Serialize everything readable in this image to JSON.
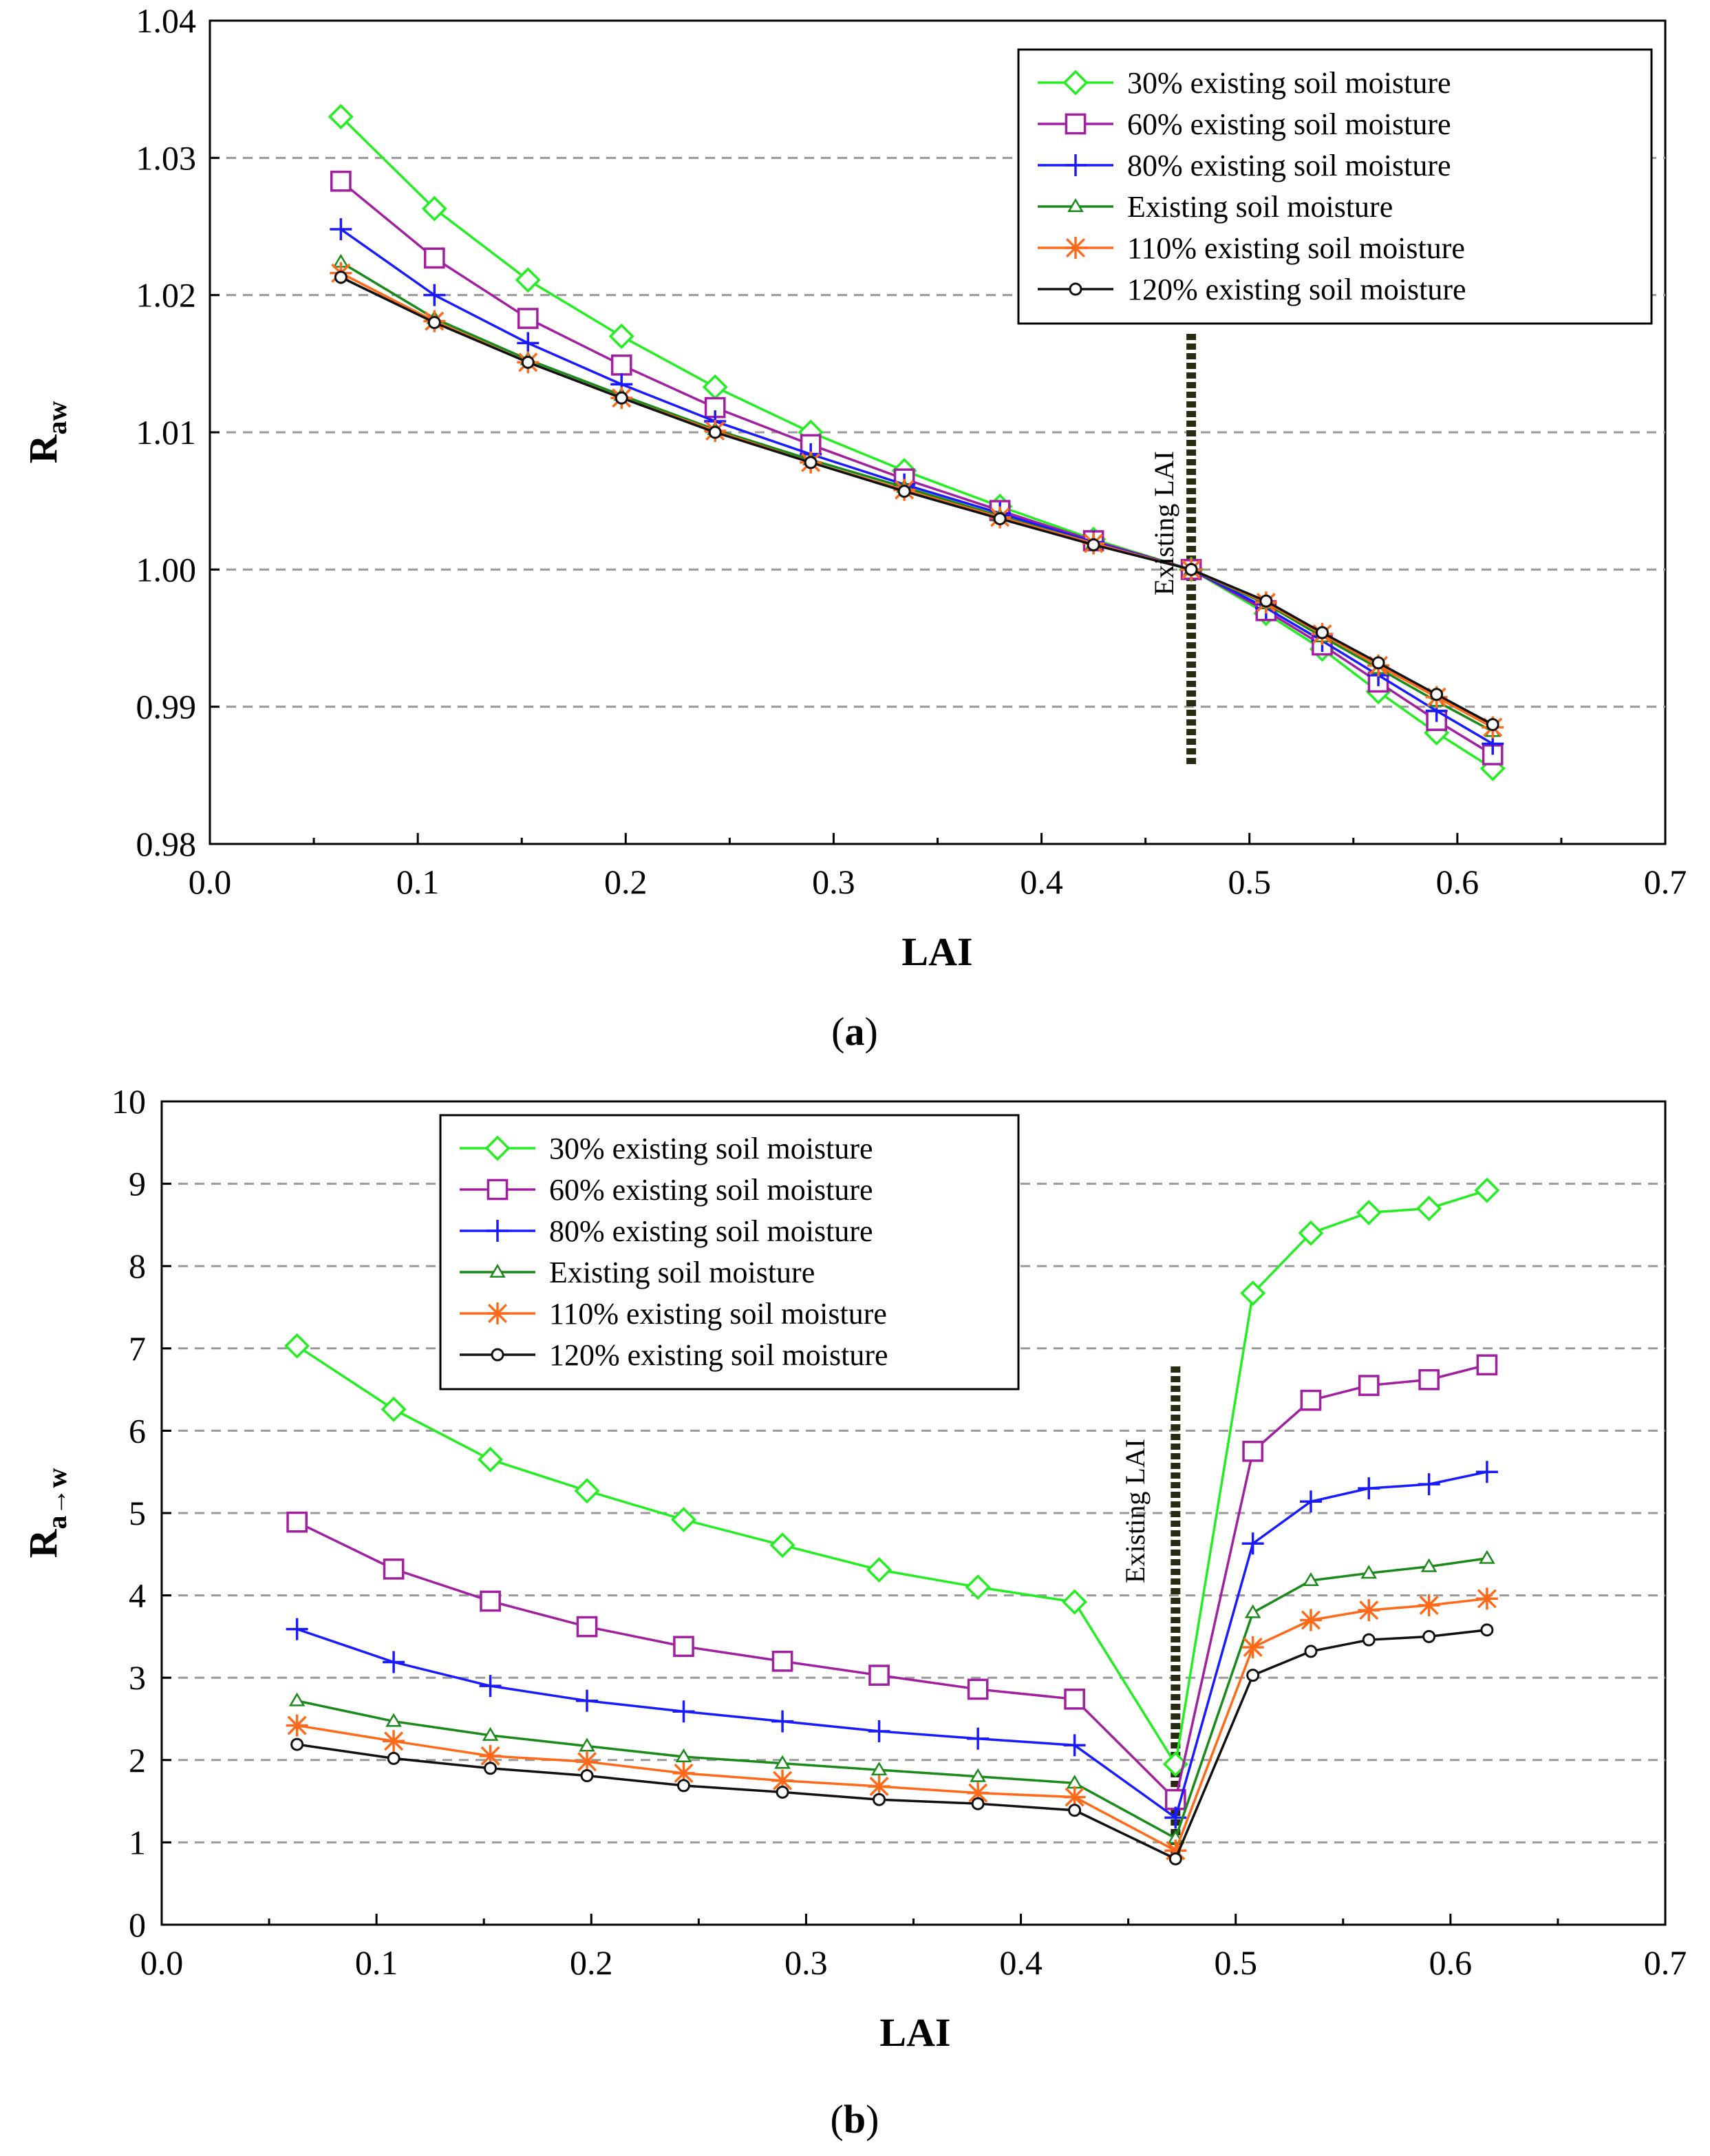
{
  "chart_data": [
    {
      "panel": "a",
      "type": "line",
      "caption_label": "a",
      "xlabel": "LAI",
      "ylabel_main": "R",
      "ylabel_sub": "aw",
      "xlim": [
        0.0,
        0.7
      ],
      "ylim": [
        0.98,
        1.04
      ],
      "xticks": [
        "0.0",
        "0.1",
        "0.2",
        "0.3",
        "0.4",
        "0.5",
        "0.6",
        "0.7"
      ],
      "yticks": [
        "0.98",
        "0.99",
        "1.00",
        "1.01",
        "1.02",
        "1.03",
        "1.04"
      ],
      "legend_position": "top-right",
      "annotation": {
        "text": "Existing LAI",
        "x": 0.472
      },
      "x": [
        0.063,
        0.108,
        0.153,
        0.198,
        0.243,
        0.289,
        0.334,
        0.38,
        0.425,
        0.472,
        0.508,
        0.535,
        0.562,
        0.59,
        0.617
      ],
      "series": [
        {
          "name": "30% existing soil moisture",
          "color": "#22ee22",
          "marker": "diamond",
          "values": [
            1.033,
            1.0263,
            1.0211,
            1.017,
            1.0133,
            1.01,
            1.0072,
            1.0046,
            1.0022,
            1.0,
            0.9968,
            0.9942,
            0.9911,
            0.9881,
            0.9855
          ]
        },
        {
          "name": "60% existing soil moisture",
          "color": "#a020a0",
          "marker": "square",
          "values": [
            1.0283,
            1.0227,
            1.0183,
            1.0149,
            1.0118,
            1.0091,
            1.0066,
            1.0043,
            1.0021,
            1.0,
            0.997,
            0.9945,
            0.9918,
            0.989,
            0.9865
          ]
        },
        {
          "name": "80% existing soil moisture",
          "color": "#1a1aff",
          "marker": "plus",
          "values": [
            1.0248,
            1.02,
            1.0165,
            1.0135,
            1.0108,
            1.0084,
            1.0062,
            1.0041,
            1.002,
            1.0,
            0.9972,
            0.9948,
            0.9923,
            0.9897,
            0.9873
          ]
        },
        {
          "name": "Existing soil moisture",
          "color": "#1a8a1a",
          "marker": "triangle",
          "values": [
            1.0224,
            1.0183,
            1.0153,
            1.0127,
            1.0102,
            1.008,
            1.006,
            1.0039,
            1.0019,
            1.0,
            0.9975,
            0.9951,
            0.9928,
            0.9904,
            0.9882
          ]
        },
        {
          "name": "110% existing soil moisture",
          "color": "#ff6a1a",
          "marker": "asterisk",
          "values": [
            1.0216,
            1.0181,
            1.0151,
            1.0125,
            1.0101,
            1.0078,
            1.0058,
            1.0038,
            1.0019,
            1.0,
            0.9976,
            0.9953,
            0.993,
            0.9907,
            0.9885
          ]
        },
        {
          "name": "120% existing soil moisture",
          "color": "#111111",
          "marker": "circle",
          "values": [
            1.0213,
            1.018,
            1.0151,
            1.0125,
            1.01,
            1.0078,
            1.0057,
            1.0037,
            1.0018,
            1.0,
            0.9977,
            0.9954,
            0.9932,
            0.9909,
            0.9887
          ]
        }
      ]
    },
    {
      "panel": "b",
      "type": "line",
      "caption_label": "b",
      "xlabel": "LAI",
      "ylabel_main": "R",
      "ylabel_sub": "a→w",
      "xlim": [
        0.0,
        0.7
      ],
      "ylim": [
        0,
        10
      ],
      "xticks": [
        "0.0",
        "0.1",
        "0.2",
        "0.3",
        "0.4",
        "0.5",
        "0.6",
        "0.7"
      ],
      "yticks": [
        "0",
        "1",
        "2",
        "3",
        "4",
        "5",
        "6",
        "7",
        "8",
        "9",
        "10"
      ],
      "legend_position": "top-center",
      "annotation": {
        "text": "Existing LAI",
        "x": 0.472
      },
      "x": [
        0.063,
        0.108,
        0.153,
        0.198,
        0.243,
        0.289,
        0.334,
        0.38,
        0.425,
        0.472,
        0.508,
        0.535,
        0.562,
        0.59,
        0.617
      ],
      "series": [
        {
          "name": "30% existing soil moisture",
          "color": "#22ee22",
          "marker": "diamond",
          "values": [
            7.03,
            6.26,
            5.65,
            5.27,
            4.92,
            4.61,
            4.31,
            4.1,
            3.92,
            1.95,
            7.67,
            8.4,
            8.65,
            8.7,
            8.92
          ]
        },
        {
          "name": "60% existing soil moisture",
          "color": "#a020a0",
          "marker": "square",
          "values": [
            4.89,
            4.32,
            3.93,
            3.62,
            3.38,
            3.2,
            3.03,
            2.86,
            2.74,
            1.52,
            5.75,
            6.37,
            6.55,
            6.62,
            6.8
          ]
        },
        {
          "name": "80% existing soil moisture",
          "color": "#1a1aff",
          "marker": "plus",
          "values": [
            3.59,
            3.19,
            2.9,
            2.72,
            2.59,
            2.47,
            2.35,
            2.26,
            2.18,
            1.3,
            4.63,
            5.14,
            5.3,
            5.35,
            5.5
          ]
        },
        {
          "name": "Existing soil moisture",
          "color": "#1a8a1a",
          "marker": "triangle",
          "values": [
            2.72,
            2.47,
            2.3,
            2.17,
            2.04,
            1.96,
            1.88,
            1.8,
            1.72,
            1.05,
            3.79,
            4.18,
            4.27,
            4.35,
            4.45
          ]
        },
        {
          "name": "110% existing soil moisture",
          "color": "#ff6a1a",
          "marker": "asterisk",
          "values": [
            2.42,
            2.23,
            2.05,
            1.98,
            1.84,
            1.75,
            1.68,
            1.6,
            1.55,
            0.9,
            3.37,
            3.7,
            3.82,
            3.88,
            3.96
          ]
        },
        {
          "name": "120% existing soil moisture",
          "color": "#111111",
          "marker": "circle",
          "values": [
            2.19,
            2.02,
            1.9,
            1.81,
            1.69,
            1.61,
            1.52,
            1.47,
            1.39,
            0.8,
            3.03,
            3.32,
            3.46,
            3.5,
            3.58
          ]
        }
      ]
    }
  ]
}
